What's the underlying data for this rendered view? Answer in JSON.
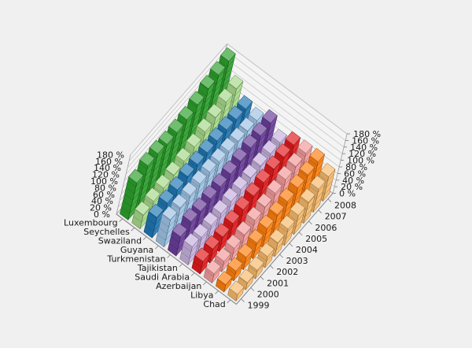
{
  "chart_data": {
    "type": "bar",
    "subtype": "3d-column",
    "title": "",
    "categories": [
      "1999",
      "2000",
      "2001",
      "2002",
      "2003",
      "2004",
      "2005",
      "2006",
      "2007",
      "2008"
    ],
    "value_axis": {
      "ylim": [
        0,
        180
      ],
      "ticks": [
        "0 %",
        "20 %",
        "40 %",
        "60 %",
        "80 %",
        "100 %",
        "120 %",
        "140 %",
        "160 %",
        "180 %"
      ],
      "unit": "%"
    },
    "grid": true,
    "legend": "none",
    "series": [
      {
        "name": "Luxembourg",
        "color": "#2ca02c",
        "values": [
          112,
          130,
          133,
          128,
          130,
          135,
          147,
          162,
          170,
          178
        ]
      },
      {
        "name": "Seychelles",
        "color": "#a6d98a",
        "values": [
          42,
          50,
          56,
          62,
          70,
          80,
          92,
          102,
          115,
          122
        ]
      },
      {
        "name": "Swaziland",
        "color": "#1f77b4",
        "values": [
          62,
          72,
          78,
          85,
          88,
          90,
          92,
          92,
          90,
          88
        ]
      },
      {
        "name": "Guyana",
        "color": "#9ec3e6",
        "values": [
          82,
          85,
          88,
          90,
          92,
          90,
          88,
          85,
          82,
          80
        ]
      },
      {
        "name": "Turkmenistan",
        "color": "#6a3d9a",
        "values": [
          58,
          70,
          68,
          72,
          75,
          80,
          85,
          92,
          95,
          100
        ]
      },
      {
        "name": "Tajikistan",
        "color": "#c7b1de",
        "values": [
          55,
          50,
          52,
          55,
          58,
          60,
          62,
          65,
          68,
          68
        ]
      },
      {
        "name": "Saudi Arabia",
        "color": "#e31a1c",
        "values": [
          38,
          42,
          45,
          52,
          60,
          68,
          75,
          82,
          85,
          88
        ]
      },
      {
        "name": "Azerbaijan",
        "color": "#f39a9a",
        "values": [
          28,
          32,
          38,
          45,
          55,
          62,
          70,
          78,
          84,
          90
        ]
      },
      {
        "name": "Libya",
        "color": "#ff7f0e",
        "values": [
          22,
          30,
          38,
          48,
          58,
          66,
          72,
          80,
          86,
          92
        ]
      },
      {
        "name": "Chad",
        "color": "#f6b96b",
        "values": [
          20,
          22,
          26,
          34,
          42,
          50,
          58,
          64,
          70,
          74
        ]
      }
    ]
  }
}
